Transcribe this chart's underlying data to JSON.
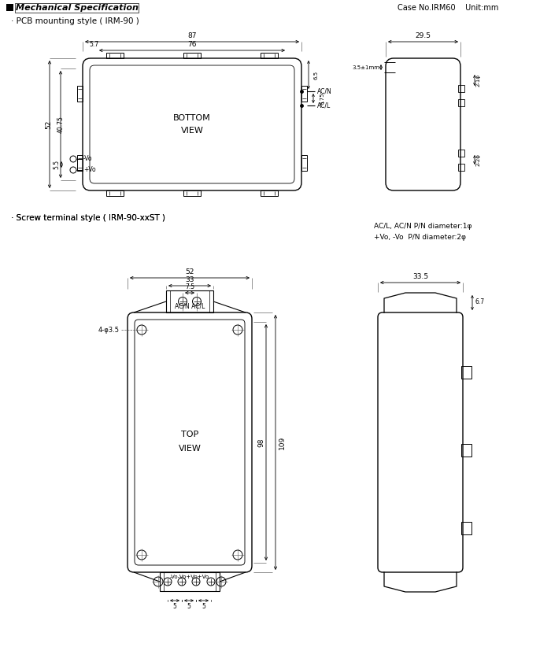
{
  "title": "Mechanical Specification",
  "subtitle_right": "Case No.IRM60    Unit:mm",
  "pcb_style_label": "· PCB mounting style ( IRM-90 )",
  "screw_style_label": "· Screw terminal style ( IRM-90-xxST )",
  "bg_color": "#ffffff",
  "line_color": "#000000",
  "text_color": "#000000",
  "note1": "AC/L, AC/N P/N diameter:1φ",
  "note2": "+Vo, -Vo  P/N diameter:2φ"
}
